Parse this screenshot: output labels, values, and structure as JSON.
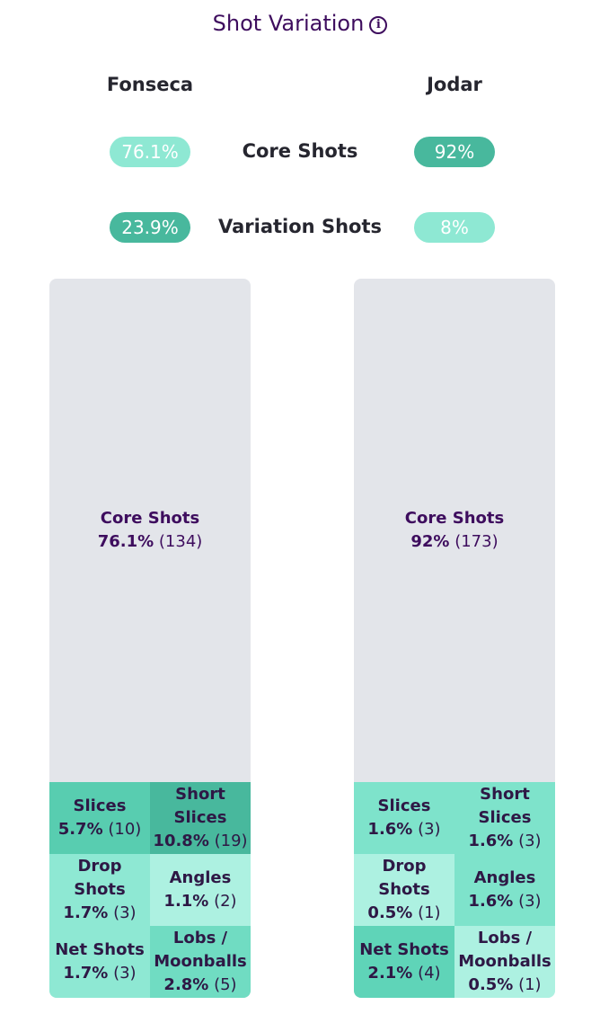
{
  "title": "Shot Variation",
  "info_icon": "info-icon",
  "players": {
    "left": "Fonseca",
    "right": "Jodar"
  },
  "summary": {
    "core_label": "Core Shots",
    "variation_label": "Variation Shots",
    "left": {
      "core": "76.1%",
      "variation": "23.9%"
    },
    "right": {
      "core": "92%",
      "variation": "8%"
    }
  },
  "colors": {
    "accent_dark": "#48b89d",
    "accent_light": "#8ee8d3",
    "panel_bg": "#e3e5ea",
    "title": "#3e0d5e"
  },
  "left_panel": {
    "core": {
      "label": "Core Shots",
      "pct": "76.1%",
      "count": "(134)"
    },
    "cells": [
      {
        "label": "Slices",
        "pct": "5.7%",
        "count": "(10)",
        "color": "#58cdb0"
      },
      {
        "label": "Short Slices",
        "pct": "10.8%",
        "count": "(19)",
        "color": "#48b89d"
      },
      {
        "label": "Drop Shots",
        "pct": "1.7%",
        "count": "(3)",
        "color": "#8ee8d3"
      },
      {
        "label": "Angles",
        "pct": "1.1%",
        "count": "(2)",
        "color": "#adf1e1"
      },
      {
        "label": "Net Shots",
        "pct": "1.7%",
        "count": "(3)",
        "color": "#8ee8d3"
      },
      {
        "label": "Lobs / Moonballs",
        "pct": "2.8%",
        "count": "(5)",
        "color": "#70dcc2"
      }
    ]
  },
  "right_panel": {
    "core": {
      "label": "Core Shots",
      "pct": "92%",
      "count": "(173)"
    },
    "cells": [
      {
        "label": "Slices",
        "pct": "1.6%",
        "count": "(3)",
        "color": "#7ee3cb"
      },
      {
        "label": "Short Slices",
        "pct": "1.6%",
        "count": "(3)",
        "color": "#7ee3cb"
      },
      {
        "label": "Drop Shots",
        "pct": "0.5%",
        "count": "(1)",
        "color": "#adf1e1"
      },
      {
        "label": "Angles",
        "pct": "1.6%",
        "count": "(3)",
        "color": "#7ee3cb"
      },
      {
        "label": "Net Shots",
        "pct": "2.1%",
        "count": "(4)",
        "color": "#5fd4b8"
      },
      {
        "label": "Lobs / Moonballs",
        "pct": "0.5%",
        "count": "(1)",
        "color": "#adf1e1"
      }
    ]
  }
}
